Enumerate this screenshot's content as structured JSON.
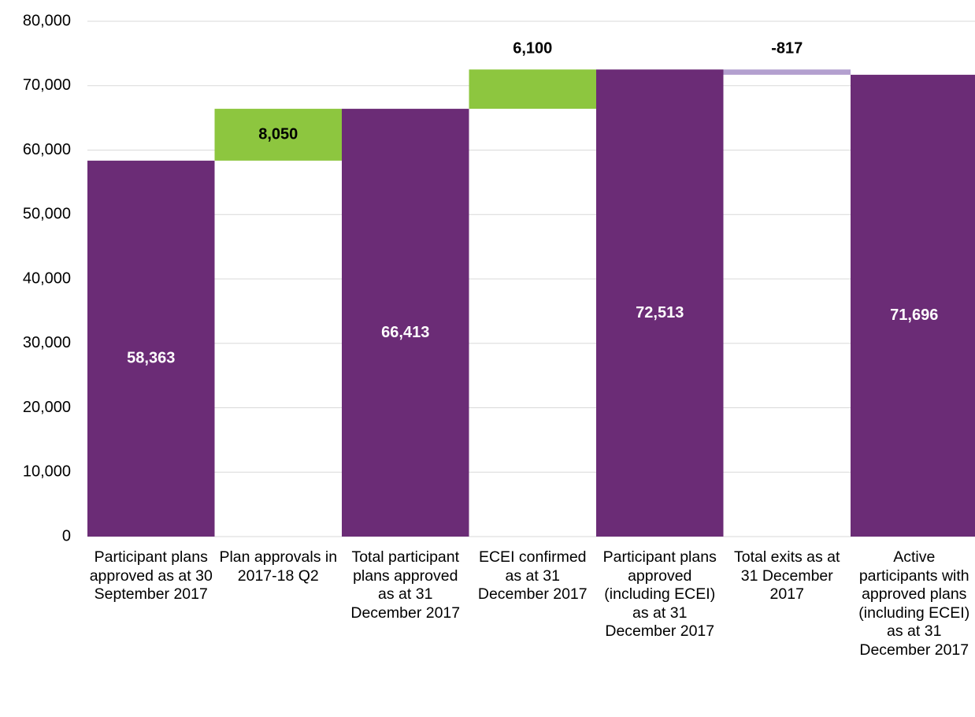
{
  "chart_data": {
    "type": "waterfall",
    "categories": [
      "Participant plans approved as at 30 September 2017",
      "Plan approvals in 2017-18 Q2",
      "Total participant plans approved as at 31 December 2017",
      "ECEI confirmed as at 31 December 2017",
      "Participant plans approved (including ECEI) as at 31 December 2017",
      "Total exits as at 31 December 2017",
      "Active participants with approved plans (including ECEI) as at 31 December 2017"
    ],
    "measures": [
      "total",
      "delta",
      "total",
      "delta",
      "total",
      "delta",
      "total"
    ],
    "values": [
      58363,
      8050,
      66413,
      6100,
      72513,
      -817,
      71696
    ],
    "value_labels": [
      "58,363",
      "8,050",
      "66,413",
      "6,100",
      "72,513",
      "-817",
      "71,696"
    ],
    "colors": {
      "total": "#6b2c76",
      "increase": "#8dc63f",
      "decrease": "#b3a0cf"
    },
    "ylim": [
      0,
      80000
    ],
    "yticks": [
      0,
      {
        "value": 10000,
        "label": "10,000"
      },
      {
        "value": 20000,
        "label": "20,000"
      },
      {
        "value": 30000,
        "label": "30,000"
      },
      {
        "value": 40000,
        "label": "40,000"
      },
      {
        "value": 50000,
        "label": "50,000"
      },
      {
        "value": 60000,
        "label": "60,000"
      },
      {
        "value": 70000,
        "label": "70,000"
      },
      {
        "value": 80000,
        "label": "80,000"
      }
    ],
    "grid": true
  }
}
